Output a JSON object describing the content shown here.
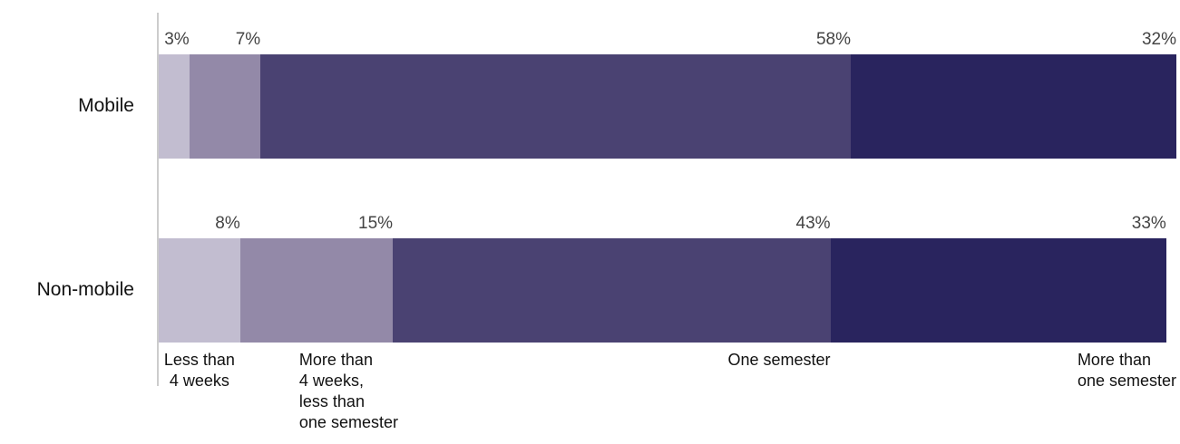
{
  "chart_data": {
    "type": "stacked_bar_horizontal",
    "categories": [
      "Mobile",
      "Non-mobile"
    ],
    "xlim": [
      0,
      100
    ],
    "series": [
      {
        "name": "Less than\n4 weeks",
        "color": "#c2bdd0",
        "values": [
          3,
          8
        ],
        "value_labels": [
          "3%",
          "8%"
        ]
      },
      {
        "name": "More than\n4 weeks,\nless than\none semester",
        "color": "#9389a8",
        "values": [
          7,
          15
        ],
        "value_labels": [
          "7%",
          "15%"
        ]
      },
      {
        "name": "One semester",
        "color": "#4a4272",
        "values": [
          58,
          43
        ],
        "value_labels": [
          "58%",
          "43%"
        ]
      },
      {
        "name": "More than\none semester",
        "color": "#29245e",
        "values": [
          32,
          33
        ],
        "value_labels": [
          "32%",
          "33%"
        ]
      }
    ]
  }
}
